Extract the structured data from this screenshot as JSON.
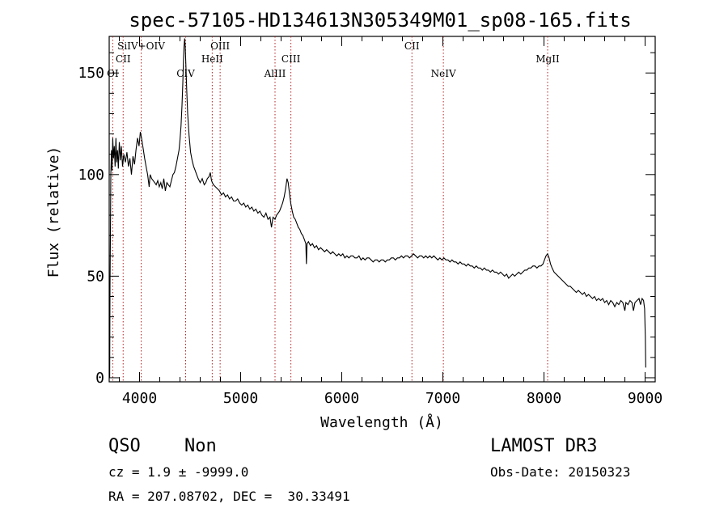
{
  "chart_data": {
    "type": "line",
    "title": "spec-57105-HD134613N305349M01_sp08-165.fits",
    "xlabel": "Wavelength (Å)",
    "ylabel": "Flux (relative)",
    "xlim": [
      3700,
      9100
    ],
    "ylim": [
      -2,
      168
    ],
    "xticks": [
      4000,
      5000,
      6000,
      7000,
      8000,
      9000
    ],
    "yticks": [
      0,
      50,
      100,
      150
    ],
    "line_color": "#000000",
    "emission_line_color": "#b22222",
    "emission_lines": [
      {
        "name": "OI",
        "wavelength": 3735,
        "row": 3
      },
      {
        "name": "CII",
        "wavelength": 3838,
        "row": 2
      },
      {
        "name": "SiIV+OIV",
        "wavelength": 4016,
        "row": 1
      },
      {
        "name": "CIV",
        "wavelength": 4456,
        "row": 3
      },
      {
        "name": "HeII",
        "wavelength": 4719,
        "row": 2
      },
      {
        "name": "OIII",
        "wavelength": 4797,
        "row": 1
      },
      {
        "name": "AlIII",
        "wavelength": 5340,
        "row": 3
      },
      {
        "name": "CIII",
        "wavelength": 5497,
        "row": 2
      },
      {
        "name": "CII",
        "wavelength": 6694,
        "row": 1
      },
      {
        "name": "NeIV",
        "wavelength": 7005,
        "row": 3
      },
      {
        "name": "MgII",
        "wavelength": 8036,
        "row": 2
      }
    ],
    "spectrum": [
      [
        3705,
        0
      ],
      [
        3708,
        45
      ],
      [
        3712,
        70
      ],
      [
        3716,
        100
      ],
      [
        3722,
        112
      ],
      [
        3728,
        102
      ],
      [
        3735,
        118
      ],
      [
        3742,
        108
      ],
      [
        3750,
        114
      ],
      [
        3758,
        104
      ],
      [
        3766,
        118
      ],
      [
        3774,
        106
      ],
      [
        3782,
        112
      ],
      [
        3790,
        103
      ],
      [
        3800,
        116
      ],
      [
        3810,
        107
      ],
      [
        3820,
        114
      ],
      [
        3832,
        104
      ],
      [
        3845,
        110
      ],
      [
        3860,
        106
      ],
      [
        3875,
        111
      ],
      [
        3890,
        104
      ],
      [
        3905,
        108
      ],
      [
        3920,
        100
      ],
      [
        3935,
        109
      ],
      [
        3950,
        105
      ],
      [
        3965,
        112
      ],
      [
        3980,
        118
      ],
      [
        3995,
        114
      ],
      [
        4008,
        121
      ],
      [
        4020,
        118
      ],
      [
        4035,
        113
      ],
      [
        4050,
        108
      ],
      [
        4065,
        104
      ],
      [
        4080,
        100
      ],
      [
        4095,
        94
      ],
      [
        4105,
        100
      ],
      [
        4120,
        98
      ],
      [
        4135,
        97
      ],
      [
        4150,
        96
      ],
      [
        4165,
        95
      ],
      [
        4180,
        97
      ],
      [
        4195,
        94
      ],
      [
        4210,
        96
      ],
      [
        4225,
        93
      ],
      [
        4240,
        98
      ],
      [
        4255,
        92
      ],
      [
        4270,
        96
      ],
      [
        4285,
        95
      ],
      [
        4300,
        94
      ],
      [
        4315,
        97
      ],
      [
        4330,
        100
      ],
      [
        4345,
        101
      ],
      [
        4360,
        104
      ],
      [
        4375,
        108
      ],
      [
        4390,
        112
      ],
      [
        4400,
        117
      ],
      [
        4410,
        124
      ],
      [
        4420,
        134
      ],
      [
        4428,
        145
      ],
      [
        4434,
        156
      ],
      [
        4440,
        163
      ],
      [
        4446,
        167
      ],
      [
        4452,
        163
      ],
      [
        4458,
        154
      ],
      [
        4466,
        142
      ],
      [
        4476,
        130
      ],
      [
        4490,
        119
      ],
      [
        4505,
        111
      ],
      [
        4520,
        107
      ],
      [
        4535,
        104
      ],
      [
        4550,
        102
      ],
      [
        4565,
        100
      ],
      [
        4580,
        98
      ],
      [
        4600,
        96
      ],
      [
        4620,
        98
      ],
      [
        4640,
        95
      ],
      [
        4655,
        96
      ],
      [
        4670,
        98
      ],
      [
        4688,
        99
      ],
      [
        4700,
        101
      ],
      [
        4712,
        97
      ],
      [
        4730,
        95
      ],
      [
        4750,
        94
      ],
      [
        4770,
        93
      ],
      [
        4790,
        92
      ],
      [
        4810,
        90
      ],
      [
        4830,
        91
      ],
      [
        4850,
        89
      ],
      [
        4870,
        90
      ],
      [
        4890,
        88
      ],
      [
        4910,
        89
      ],
      [
        4930,
        87
      ],
      [
        4950,
        87
      ],
      [
        4970,
        88
      ],
      [
        4990,
        86
      ],
      [
        5010,
        85
      ],
      [
        5030,
        86
      ],
      [
        5050,
        84
      ],
      [
        5070,
        85
      ],
      [
        5090,
        83
      ],
      [
        5110,
        84
      ],
      [
        5130,
        82
      ],
      [
        5150,
        83
      ],
      [
        5170,
        81
      ],
      [
        5190,
        82
      ],
      [
        5210,
        80
      ],
      [
        5230,
        79
      ],
      [
        5250,
        81
      ],
      [
        5270,
        78
      ],
      [
        5290,
        79
      ],
      [
        5305,
        74
      ],
      [
        5320,
        79
      ],
      [
        5340,
        78
      ],
      [
        5355,
        80
      ],
      [
        5370,
        81
      ],
      [
        5385,
        82
      ],
      [
        5400,
        84
      ],
      [
        5415,
        86
      ],
      [
        5430,
        89
      ],
      [
        5445,
        93
      ],
      [
        5458,
        98
      ],
      [
        5470,
        96
      ],
      [
        5482,
        91
      ],
      [
        5495,
        86
      ],
      [
        5510,
        82
      ],
      [
        5525,
        79
      ],
      [
        5540,
        78
      ],
      [
        5555,
        76
      ],
      [
        5570,
        74
      ],
      [
        5585,
        73
      ],
      [
        5600,
        71
      ],
      [
        5615,
        70
      ],
      [
        5630,
        68
      ],
      [
        5645,
        66
      ],
      [
        5650,
        56
      ],
      [
        5657,
        66
      ],
      [
        5670,
        67
      ],
      [
        5690,
        65
      ],
      [
        5710,
        66
      ],
      [
        5730,
        64
      ],
      [
        5750,
        65
      ],
      [
        5770,
        63
      ],
      [
        5790,
        64
      ],
      [
        5810,
        63
      ],
      [
        5830,
        62
      ],
      [
        5850,
        63
      ],
      [
        5870,
        62
      ],
      [
        5890,
        61
      ],
      [
        5910,
        62
      ],
      [
        5930,
        61
      ],
      [
        5950,
        60
      ],
      [
        5970,
        61
      ],
      [
        5990,
        60
      ],
      [
        6010,
        61
      ],
      [
        6030,
        59
      ],
      [
        6050,
        60
      ],
      [
        6070,
        59
      ],
      [
        6090,
        60
      ],
      [
        6110,
        60
      ],
      [
        6130,
        59
      ],
      [
        6150,
        59
      ],
      [
        6170,
        60
      ],
      [
        6190,
        58
      ],
      [
        6210,
        59
      ],
      [
        6230,
        58
      ],
      [
        6250,
        59
      ],
      [
        6270,
        59
      ],
      [
        6290,
        58
      ],
      [
        6310,
        57
      ],
      [
        6330,
        58
      ],
      [
        6350,
        58
      ],
      [
        6370,
        57
      ],
      [
        6390,
        58
      ],
      [
        6410,
        58
      ],
      [
        6430,
        57
      ],
      [
        6450,
        58
      ],
      [
        6470,
        58
      ],
      [
        6490,
        59
      ],
      [
        6510,
        59
      ],
      [
        6530,
        58
      ],
      [
        6550,
        59
      ],
      [
        6570,
        59
      ],
      [
        6590,
        60
      ],
      [
        6610,
        59
      ],
      [
        6630,
        60
      ],
      [
        6650,
        60
      ],
      [
        6670,
        59
      ],
      [
        6690,
        60
      ],
      [
        6710,
        61
      ],
      [
        6730,
        60
      ],
      [
        6750,
        59
      ],
      [
        6770,
        60
      ],
      [
        6790,
        60
      ],
      [
        6810,
        59
      ],
      [
        6830,
        60
      ],
      [
        6850,
        59
      ],
      [
        6870,
        60
      ],
      [
        6890,
        59
      ],
      [
        6910,
        60
      ],
      [
        6930,
        59
      ],
      [
        6950,
        58
      ],
      [
        6970,
        59
      ],
      [
        6990,
        58
      ],
      [
        7010,
        59
      ],
      [
        7030,
        58
      ],
      [
        7050,
        58
      ],
      [
        7070,
        57
      ],
      [
        7090,
        58
      ],
      [
        7110,
        57
      ],
      [
        7130,
        57
      ],
      [
        7150,
        56
      ],
      [
        7170,
        57
      ],
      [
        7190,
        56
      ],
      [
        7210,
        56
      ],
      [
        7230,
        55
      ],
      [
        7250,
        56
      ],
      [
        7270,
        55
      ],
      [
        7290,
        55
      ],
      [
        7310,
        54
      ],
      [
        7330,
        55
      ],
      [
        7350,
        54
      ],
      [
        7370,
        54
      ],
      [
        7390,
        53
      ],
      [
        7410,
        54
      ],
      [
        7430,
        53
      ],
      [
        7450,
        53
      ],
      [
        7470,
        52
      ],
      [
        7490,
        53
      ],
      [
        7510,
        52
      ],
      [
        7530,
        52
      ],
      [
        7550,
        51
      ],
      [
        7570,
        52
      ],
      [
        7590,
        51
      ],
      [
        7610,
        50
      ],
      [
        7630,
        51
      ],
      [
        7650,
        49
      ],
      [
        7670,
        50
      ],
      [
        7690,
        51
      ],
      [
        7710,
        50
      ],
      [
        7730,
        51
      ],
      [
        7750,
        52
      ],
      [
        7770,
        51
      ],
      [
        7790,
        52
      ],
      [
        7810,
        53
      ],
      [
        7830,
        53
      ],
      [
        7850,
        54
      ],
      [
        7870,
        54
      ],
      [
        7890,
        55
      ],
      [
        7910,
        55
      ],
      [
        7930,
        54
      ],
      [
        7950,
        55
      ],
      [
        7970,
        55
      ],
      [
        7990,
        56
      ],
      [
        8005,
        58
      ],
      [
        8020,
        60
      ],
      [
        8035,
        61
      ],
      [
        8050,
        59
      ],
      [
        8065,
        56
      ],
      [
        8080,
        54
      ],
      [
        8100,
        52
      ],
      [
        8120,
        51
      ],
      [
        8140,
        50
      ],
      [
        8160,
        49
      ],
      [
        8180,
        48
      ],
      [
        8200,
        47
      ],
      [
        8220,
        46
      ],
      [
        8240,
        45
      ],
      [
        8260,
        45
      ],
      [
        8280,
        44
      ],
      [
        8300,
        43
      ],
      [
        8320,
        42
      ],
      [
        8340,
        43
      ],
      [
        8360,
        42
      ],
      [
        8380,
        41
      ],
      [
        8400,
        42
      ],
      [
        8420,
        40
      ],
      [
        8440,
        41
      ],
      [
        8460,
        40
      ],
      [
        8480,
        39
      ],
      [
        8500,
        40
      ],
      [
        8520,
        38
      ],
      [
        8540,
        39
      ],
      [
        8560,
        38
      ],
      [
        8580,
        39
      ],
      [
        8600,
        37
      ],
      [
        8620,
        38
      ],
      [
        8640,
        36
      ],
      [
        8660,
        38
      ],
      [
        8680,
        37
      ],
      [
        8700,
        35
      ],
      [
        8720,
        37
      ],
      [
        8740,
        36
      ],
      [
        8760,
        38
      ],
      [
        8780,
        37
      ],
      [
        8800,
        33
      ],
      [
        8810,
        37
      ],
      [
        8830,
        36
      ],
      [
        8850,
        38
      ],
      [
        8870,
        37
      ],
      [
        8885,
        33
      ],
      [
        8900,
        37
      ],
      [
        8920,
        38
      ],
      [
        8940,
        39
      ],
      [
        8955,
        36
      ],
      [
        8970,
        39
      ],
      [
        8985,
        38
      ],
      [
        8995,
        34
      ],
      [
        9002,
        20
      ],
      [
        9006,
        5
      ]
    ]
  },
  "info": {
    "class": "QSO",
    "subclass": "Non",
    "survey": "LAMOST DR3",
    "cz": "cz = 1.9 ± -9999.0",
    "obs_date": "Obs-Date: 20150323",
    "coords": "RA = 207.08702, DEC =  30.33491"
  }
}
